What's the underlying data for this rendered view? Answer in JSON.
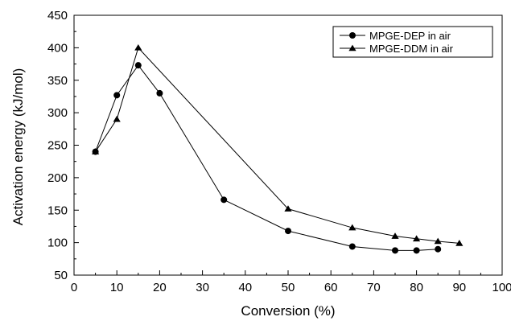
{
  "chart_data": {
    "type": "line",
    "title": "",
    "xlabel": "Conversion (%)",
    "ylabel": "Activation energy (kJ/mol)",
    "xlim": [
      0,
      100
    ],
    "ylim": [
      50,
      450
    ],
    "xticks": [
      0,
      10,
      20,
      30,
      40,
      50,
      60,
      70,
      80,
      90,
      100
    ],
    "yticks": [
      50,
      100,
      150,
      200,
      250,
      300,
      350,
      400,
      450
    ],
    "grid": false,
    "legend_position": "top-right",
    "series": [
      {
        "name": "MPGE-DEP in air",
        "marker": "circle",
        "color": "#000000",
        "x": [
          5,
          10,
          15,
          20,
          35,
          50,
          65,
          75,
          80,
          85
        ],
        "y": [
          240,
          327,
          373,
          330,
          166,
          118,
          94,
          88,
          88,
          90
        ]
      },
      {
        "name": "MPGE-DDM in air",
        "marker": "triangle",
        "color": "#000000",
        "x": [
          5,
          10,
          15,
          50,
          65,
          75,
          80,
          85,
          90
        ],
        "y": [
          240,
          290,
          400,
          152,
          123,
          110,
          106,
          102,
          99
        ]
      }
    ]
  }
}
